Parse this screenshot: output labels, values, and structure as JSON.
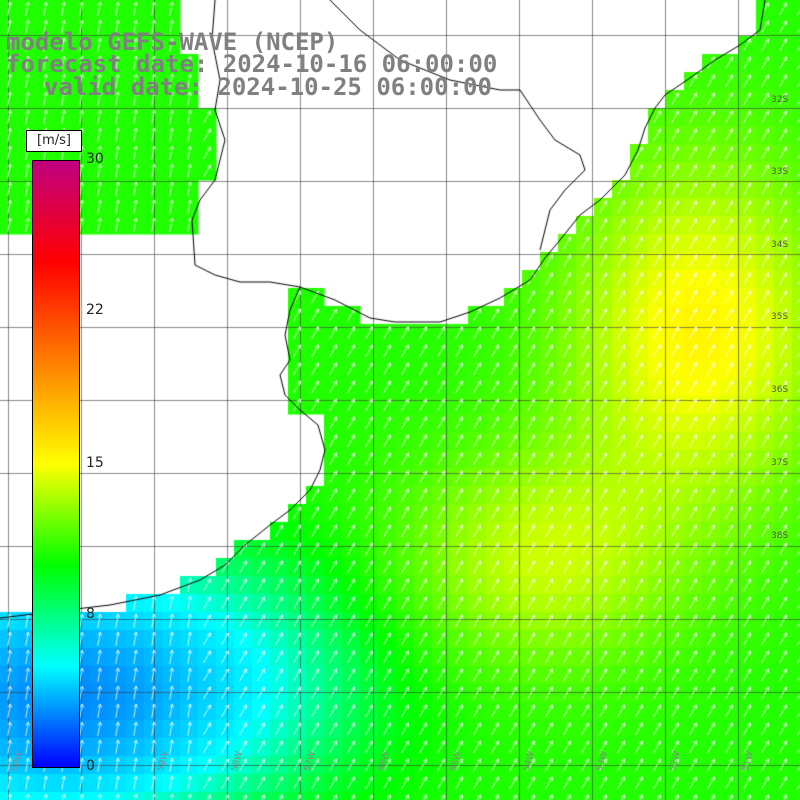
{
  "title": {
    "line1": "modelo GEFS-WAVE (NCEP)",
    "line2": "forecast date: 2024-10-16 06:00:00",
    "line3": "valid date: 2024-10-25 06:00:00"
  },
  "colorbar": {
    "units": "[m/s]",
    "ticks": [
      {
        "label": "30",
        "value": 30
      },
      {
        "label": "22",
        "value": 22
      },
      {
        "label": "15",
        "value": 15
      },
      {
        "label": "8",
        "value": 8
      },
      {
        "label": "0",
        "value": 0
      }
    ],
    "colors": [
      "#0000ff",
      "#00ffff",
      "#00ff00",
      "#ffff00",
      "#ff8000",
      "#ff0000",
      "#c00080"
    ]
  },
  "lat_labels": [
    "32S",
    "33S",
    "34S",
    "35S",
    "36S",
    "37S",
    "38S"
  ],
  "lon_labels": [
    "60W",
    "59W",
    "58W",
    "57W",
    "56W",
    "55W",
    "54W",
    "53W",
    "52W",
    "51W"
  ]
}
